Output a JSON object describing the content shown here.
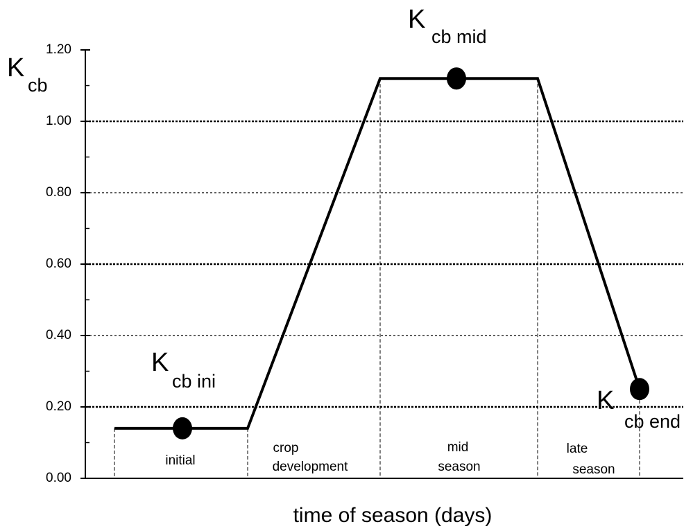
{
  "chart_data": {
    "type": "line",
    "x_label": "time of season (days)",
    "y_label": {
      "main": "K",
      "sub": "cb"
    },
    "ylim": [
      0,
      1.2
    ],
    "yticks": [
      {
        "value": 0,
        "label": "0.00"
      },
      {
        "value": 0.2,
        "label": "0.20"
      },
      {
        "value": 0.4,
        "label": "0.40"
      },
      {
        "value": 0.6,
        "label": "0.60"
      },
      {
        "value": 0.8,
        "label": "0.80"
      },
      {
        "value": 1.0,
        "label": "1.00"
      },
      {
        "value": 1.2,
        "label": "1.20"
      }
    ],
    "minor_yticks": [
      0.1,
      0.3,
      0.5,
      0.7,
      0.9,
      1.1
    ],
    "grid": true,
    "color": "#000000",
    "series": [
      {
        "values": [
          0.14,
          0.14,
          1.12,
          1.12,
          0.25
        ]
      }
    ],
    "stages": [
      [
        "initial"
      ],
      [
        "crop",
        "development"
      ],
      [
        "mid",
        "season"
      ],
      [
        "late",
        "season"
      ]
    ],
    "points": [
      {
        "y": 0.14,
        "label": {
          "main": "K",
          "sub": "cb ini"
        }
      },
      {
        "y": 1.12,
        "label": {
          "main": "K",
          "sub": "cb mid"
        }
      },
      {
        "y": 0.25,
        "label": {
          "main": "K",
          "sub": "cb end"
        }
      }
    ]
  }
}
